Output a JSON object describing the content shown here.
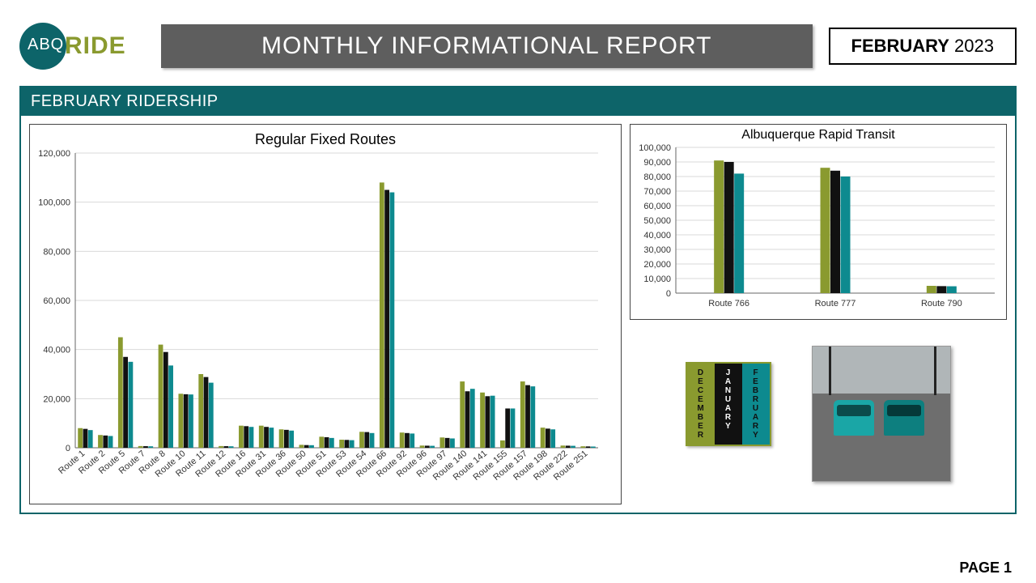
{
  "logo": {
    "abq": "ABQ",
    "ride": "RIDE"
  },
  "title": "MONTHLY INFORMATIONAL REPORT",
  "date": {
    "month": "FEBRUARY",
    "year": "2023"
  },
  "panel_header": "FEBRUARY RIDERSHIP",
  "page_label": "PAGE 1",
  "colors": {
    "olive": "#8a9a2f",
    "black": "#111111",
    "teal": "#0d8a8f",
    "panel_teal": "#0d6469",
    "grid": "#d9d9d9",
    "axis": "#666666",
    "title_band": "#5e5e5e"
  },
  "legend": {
    "cols": [
      {
        "label": "DECEMBER",
        "bg": "#8a9a2f",
        "fg": "#111111"
      },
      {
        "label": "JANUARY",
        "bg": "#111111",
        "fg": "#ffffff"
      },
      {
        "label": "FEBRUARY",
        "bg": "#0d8a8f",
        "fg": "#111111"
      }
    ]
  },
  "main_chart": {
    "type": "bar",
    "title": "Regular Fixed Routes",
    "title_fontsize": 18,
    "label_fontsize": 11,
    "ylim": [
      0,
      120000
    ],
    "ytick_step": 20000,
    "yticks": [
      "0",
      "20,000",
      "40,000",
      "60,000",
      "80,000",
      "100,000",
      "120,000"
    ],
    "categories": [
      "Route 1",
      "Route 2",
      "Route 5",
      "Route 7",
      "Route 8",
      "Route 10",
      "Route 11",
      "Route 12",
      "Route 16",
      "Route 31",
      "Route 36",
      "Route 50",
      "Route 51",
      "Route 53",
      "Route 54",
      "Route 66",
      "Route 92",
      "Route 96",
      "Route 97",
      "Route 140",
      "Route 141",
      "Route 155",
      "Route 157",
      "Route 198",
      "Route 222",
      "Route 251"
    ],
    "series": [
      {
        "name": "December",
        "color": "#8a9a2f",
        "values": [
          8000,
          5200,
          45000,
          700,
          42000,
          22000,
          30000,
          700,
          9000,
          9000,
          7500,
          1200,
          4500,
          3300,
          6500,
          108000,
          6200,
          900,
          4200,
          27000,
          22500,
          3000,
          27000,
          8200,
          900,
          600
        ]
      },
      {
        "name": "January",
        "color": "#111111",
        "values": [
          7700,
          5000,
          37000,
          650,
          39000,
          21800,
          28800,
          650,
          8800,
          8500,
          7300,
          1100,
          4300,
          3200,
          6400,
          105000,
          6000,
          850,
          4000,
          23000,
          21000,
          16000,
          25500,
          7800,
          850,
          550
        ]
      },
      {
        "name": "February",
        "color": "#0d8a8f",
        "values": [
          7200,
          4800,
          35000,
          600,
          33500,
          21700,
          26500,
          600,
          8500,
          8200,
          7000,
          1050,
          4000,
          3100,
          6000,
          104000,
          5800,
          800,
          3800,
          24000,
          21200,
          16000,
          25000,
          7500,
          800,
          500
        ]
      }
    ],
    "bar_gap": 1,
    "group_gap": 6
  },
  "art_chart": {
    "type": "bar",
    "title": "Albuquerque Rapid Transit",
    "title_fontsize": 16,
    "label_fontsize": 11,
    "ylim": [
      0,
      100000
    ],
    "ytick_step": 10000,
    "yticks": [
      "0",
      "10,000",
      "20,000",
      "30,000",
      "40,000",
      "50,000",
      "60,000",
      "70,000",
      "80,000",
      "90,000",
      "100,000"
    ],
    "categories": [
      "Route 766",
      "Route 777",
      "Route 790"
    ],
    "series": [
      {
        "name": "December",
        "color": "#8a9a2f",
        "values": [
          91000,
          86000,
          5000
        ]
      },
      {
        "name": "January",
        "color": "#111111",
        "values": [
          90000,
          84000,
          4800
        ]
      },
      {
        "name": "February",
        "color": "#0d8a8f",
        "values": [
          82000,
          80000,
          4700
        ]
      }
    ]
  }
}
